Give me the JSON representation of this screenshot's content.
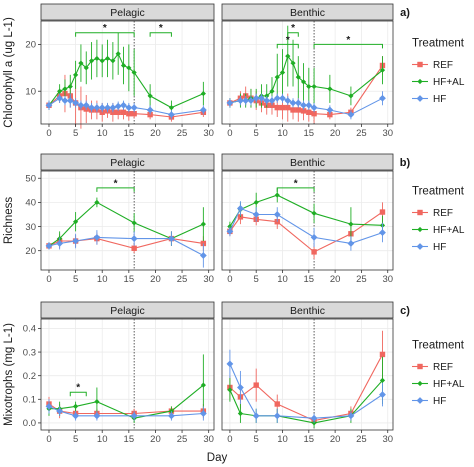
{
  "colors": {
    "REF": "#f0675f",
    "HF+AL": "#1fae25",
    "HF": "#6295e8"
  },
  "legend": {
    "title": "Treatment",
    "entries": [
      "REF",
      "HF+AL",
      "HF"
    ]
  },
  "x_axis_title": "Day",
  "chart_data": [
    {
      "type": "line",
      "row_label": "a)",
      "ylabel": "Chlorophyll a (ug L-1)",
      "xlabel": "",
      "xlim": [
        -1.5,
        31
      ],
      "xticks": [
        0,
        5,
        10,
        15,
        20,
        25,
        30
      ],
      "ylim": [
        3,
        25
      ],
      "yticks": [
        10,
        20
      ],
      "vline_day": 16,
      "panels": [
        {
          "title": "Pelagic",
          "series": [
            {
              "name": "REF",
              "x": [
                0,
                2,
                3,
                4,
                5,
                6,
                7,
                8,
                9,
                10,
                11,
                12,
                13,
                14,
                15,
                16,
                19,
                23,
                29
              ],
              "y": [
                7,
                9,
                9.5,
                9,
                7.5,
                6.5,
                6.2,
                6,
                6,
                5.5,
                5.8,
                5.5,
                5.5,
                5.5,
                5.2,
                5.2,
                5,
                4.5,
                5.5
              ],
              "err": [
                1,
                1.5,
                4,
                2.5,
                5,
                4.5,
                3,
                2,
                2,
                2,
                1.5,
                2,
                1.5,
                1.5,
                1.5,
                1,
                1,
                1,
                1
              ]
            },
            {
              "name": "HF+AL",
              "x": [
                0,
                2,
                3,
                4,
                5,
                6,
                7,
                8,
                9,
                10,
                11,
                12,
                13,
                14,
                15,
                16,
                19,
                23,
                29
              ],
              "y": [
                7,
                10,
                10.5,
                11,
                13.5,
                16,
                15,
                16.5,
                17,
                16.5,
                17,
                16.5,
                18,
                15.5,
                15,
                14,
                9,
                6.5,
                9.5
              ],
              "err": [
                1,
                1.5,
                2,
                2.5,
                3,
                4,
                3.5,
                4,
                4,
                3.5,
                4,
                4,
                4.5,
                4,
                5,
                5,
                2.5,
                1.5,
                2.5
              ]
            },
            {
              "name": "HF",
              "x": [
                0,
                2,
                3,
                4,
                5,
                6,
                7,
                8,
                9,
                10,
                11,
                12,
                13,
                14,
                15,
                16,
                19,
                23,
                29
              ],
              "y": [
                7,
                8.5,
                8,
                8,
                7.5,
                7,
                7,
                6.5,
                6.5,
                6.5,
                6.5,
                6.5,
                6.8,
                7,
                6.5,
                6.5,
                6,
                5,
                6
              ],
              "err": [
                1,
                1,
                1,
                1.5,
                1,
                1,
                1,
                1,
                1,
                1,
                1,
                1,
                1,
                1,
                1,
                1,
                1,
                1,
                1
              ]
            }
          ],
          "brackets": [
            {
              "x1": 5,
              "x2": 16,
              "y": 22.5,
              "label": "*"
            },
            {
              "x1": 19,
              "x2": 23,
              "y": 22.5,
              "label": "*"
            }
          ]
        },
        {
          "title": "Benthic",
          "series": [
            {
              "name": "REF",
              "x": [
                0,
                2,
                3,
                4,
                5,
                6,
                7,
                8,
                9,
                10,
                11,
                12,
                13,
                14,
                15,
                16,
                19,
                23,
                29
              ],
              "y": [
                7.5,
                8.5,
                9,
                8.5,
                8,
                7.5,
                7,
                7,
                6.5,
                6.5,
                6.5,
                6,
                6,
                5.8,
                5.5,
                5.2,
                5,
                5.5,
                15.5
              ],
              "err": [
                1,
                1.5,
                2,
                2,
                2,
                2,
                2,
                2,
                2,
                2.5,
                3,
                2,
                2.5,
                2,
                2,
                2,
                1,
                1,
                2
              ]
            },
            {
              "name": "HF+AL",
              "x": [
                0,
                2,
                3,
                4,
                5,
                6,
                7,
                8,
                9,
                10,
                11,
                12,
                13,
                14,
                15,
                16,
                19,
                23,
                29
              ],
              "y": [
                7.5,
                8,
                8,
                8.5,
                8.5,
                9,
                9,
                10,
                13,
                14,
                17.5,
                16,
                13,
                12,
                11,
                11,
                10.5,
                9,
                14.5
              ],
              "err": [
                1,
                1.5,
                1.5,
                2,
                2,
                2.5,
                2.5,
                3,
                5,
                5,
                6.5,
                5,
                4.5,
                4,
                4,
                4,
                3,
                2,
                3
              ]
            },
            {
              "name": "HF",
              "x": [
                0,
                2,
                3,
                4,
                5,
                6,
                7,
                8,
                9,
                10,
                11,
                12,
                13,
                14,
                15,
                16,
                19,
                23,
                29
              ],
              "y": [
                7.5,
                8,
                8,
                8,
                8.5,
                8.5,
                8,
                8,
                8.5,
                8.5,
                8,
                7.5,
                7.5,
                7,
                7,
                6.5,
                6,
                5,
                8.5
              ],
              "err": [
                1,
                1,
                1,
                1,
                1,
                1,
                1,
                1,
                1,
                1,
                1,
                1,
                1,
                1,
                1,
                1,
                1,
                1,
                1.5
              ]
            }
          ],
          "brackets": [
            {
              "x1": 9,
              "x2": 13,
              "y": 20,
              "label": "*"
            },
            {
              "x1": 11,
              "x2": 13,
              "y": 22.5,
              "label": "*"
            },
            {
              "x1": 16,
              "x2": 29,
              "y": 20,
              "label": "*"
            }
          ]
        }
      ]
    },
    {
      "type": "line",
      "row_label": "b)",
      "ylabel": "Richness",
      "xlabel": "",
      "xlim": [
        -1.5,
        31
      ],
      "xticks": [
        0,
        5,
        10,
        15,
        20,
        25,
        30
      ],
      "ylim": [
        12,
        53
      ],
      "yticks": [
        20,
        30,
        40,
        50
      ],
      "vline_day": 16,
      "panels": [
        {
          "title": "Pelagic",
          "series": [
            {
              "name": "REF",
              "x": [
                0,
                2,
                5,
                9,
                16,
                23,
                29
              ],
              "y": [
                22,
                24,
                24,
                25,
                21,
                25,
                23
              ],
              "err": [
                1.5,
                3,
                2.5,
                2.5,
                2,
                3,
                3
              ]
            },
            {
              "name": "HF+AL",
              "x": [
                0,
                2,
                5,
                9,
                16,
                23,
                29
              ],
              "y": [
                22,
                25,
                32,
                40,
                31.5,
                25,
                31
              ],
              "err": [
                1.5,
                3,
                4,
                2,
                4,
                3,
                7
              ]
            },
            {
              "name": "HF",
              "x": [
                0,
                2,
                5,
                9,
                16,
                23,
                29
              ],
              "y": [
                22,
                23,
                24,
                25.5,
                25,
                25,
                18
              ],
              "err": [
                1.5,
                2.5,
                3,
                3,
                3,
                3,
                5
              ]
            }
          ],
          "brackets": [
            {
              "x1": 9,
              "x2": 16,
              "y": 46,
              "label": "*"
            }
          ]
        },
        {
          "title": "Benthic",
          "series": [
            {
              "name": "REF",
              "x": [
                0,
                2,
                5,
                9,
                16,
                23,
                29
              ],
              "y": [
                28,
                34,
                33,
                32,
                19.5,
                27,
                36
              ],
              "err": [
                2,
                3,
                2.5,
                3,
                3,
                3,
                4
              ]
            },
            {
              "name": "HF+AL",
              "x": [
                0,
                2,
                5,
                9,
                16,
                23,
                29
              ],
              "y": [
                30,
                37,
                40,
                43,
                35.5,
                31,
                30.5
              ],
              "err": [
                2,
                3,
                4,
                3,
                4,
                7,
                4
              ]
            },
            {
              "name": "HF",
              "x": [
                0,
                2,
                5,
                9,
                16,
                23,
                29
              ],
              "y": [
                28,
                37.5,
                35,
                35,
                25.5,
                23,
                27.5
              ],
              "err": [
                2,
                3,
                3,
                3,
                4,
                3,
                4
              ]
            }
          ],
          "brackets": [
            {
              "x1": 9,
              "x2": 16,
              "y": 46,
              "label": "*"
            }
          ]
        }
      ]
    },
    {
      "type": "line",
      "row_label": "c)",
      "ylabel": "Mixotrophs (mg L-1)",
      "xlabel": "Day",
      "xlim": [
        -1.5,
        31
      ],
      "xticks": [
        0,
        5,
        10,
        15,
        20,
        25,
        30
      ],
      "ylim": [
        -0.03,
        0.44
      ],
      "yticks": [
        0.0,
        0.1,
        0.2,
        0.3,
        0.4
      ],
      "vline_day": 16,
      "panels": [
        {
          "title": "Pelagic",
          "series": [
            {
              "name": "REF",
              "x": [
                0,
                2,
                5,
                9,
                16,
                23,
                29
              ],
              "y": [
                0.08,
                0.05,
                0.04,
                0.04,
                0.04,
                0.05,
                0.05
              ],
              "err": [
                0.03,
                0.03,
                0.02,
                0.02,
                0.02,
                0.02,
                0.03
              ]
            },
            {
              "name": "HF+AL",
              "x": [
                0,
                2,
                5,
                9,
                16,
                23,
                29
              ],
              "y": [
                0.06,
                0.06,
                0.07,
                0.09,
                0.02,
                0.05,
                0.16
              ],
              "err": [
                0.03,
                0.03,
                0.02,
                0.06,
                0.02,
                0.02,
                0.13
              ]
            },
            {
              "name": "HF",
              "x": [
                0,
                2,
                5,
                9,
                16,
                23,
                29
              ],
              "y": [
                0.07,
                0.05,
                0.03,
                0.03,
                0.03,
                0.03,
                0.04
              ],
              "err": [
                0.03,
                0.02,
                0.02,
                0.02,
                0.02,
                0.02,
                0.03
              ]
            }
          ],
          "brackets": [
            {
              "x1": 4,
              "x2": 7,
              "y": 0.13,
              "label": "*"
            }
          ]
        },
        {
          "title": "Benthic",
          "series": [
            {
              "name": "REF",
              "x": [
                0,
                2,
                5,
                9,
                16,
                23,
                29
              ],
              "y": [
                0.15,
                0.11,
                0.16,
                0.08,
                0.01,
                0.04,
                0.29
              ],
              "err": [
                0.05,
                0.05,
                0.07,
                0.04,
                0.02,
                0.03,
                0.1
              ]
            },
            {
              "name": "HF+AL",
              "x": [
                0,
                2,
                5,
                9,
                16,
                23,
                29
              ],
              "y": [
                0.14,
                0.04,
                0.03,
                0.03,
                0.0,
                0.03,
                0.18
              ],
              "err": [
                0.05,
                0.04,
                0.03,
                0.03,
                0.02,
                0.03,
                0.1
              ]
            },
            {
              "name": "HF",
              "x": [
                0,
                2,
                5,
                9,
                16,
                23,
                29
              ],
              "y": [
                0.25,
                0.15,
                0.03,
                0.03,
                0.02,
                0.03,
                0.12
              ],
              "err": [
                0.06,
                0.07,
                0.03,
                0.03,
                0.02,
                0.02,
                0.05
              ]
            }
          ],
          "brackets": []
        }
      ]
    }
  ]
}
